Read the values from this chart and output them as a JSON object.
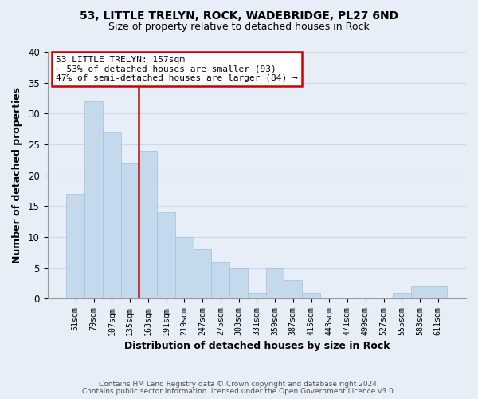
{
  "title1": "53, LITTLE TRELYN, ROCK, WADEBRIDGE, PL27 6ND",
  "title2": "Size of property relative to detached houses in Rock",
  "xlabel": "Distribution of detached houses by size in Rock",
  "ylabel": "Number of detached properties",
  "footer1": "Contains HM Land Registry data © Crown copyright and database right 2024.",
  "footer2": "Contains public sector information licensed under the Open Government Licence v3.0.",
  "bar_labels": [
    "51sqm",
    "79sqm",
    "107sqm",
    "135sqm",
    "163sqm",
    "191sqm",
    "219sqm",
    "247sqm",
    "275sqm",
    "303sqm",
    "331sqm",
    "359sqm",
    "387sqm",
    "415sqm",
    "443sqm",
    "471sqm",
    "499sqm",
    "527sqm",
    "555sqm",
    "583sqm",
    "611sqm"
  ],
  "bar_values": [
    17,
    32,
    27,
    22,
    24,
    14,
    10,
    8,
    6,
    5,
    1,
    5,
    3,
    1,
    0,
    0,
    0,
    0,
    1,
    2,
    2
  ],
  "bar_color": "#c5d9ed",
  "bar_edgecolor": "#a8c4dc",
  "vline_index": 4,
  "vline_color": "#cc0000",
  "annotation_title": "53 LITTLE TRELYN: 157sqm",
  "annotation_line1": "← 53% of detached houses are smaller (93)",
  "annotation_line2": "47% of semi-detached houses are larger (84) →",
  "annotation_box_color": "#cc0000",
  "annotation_bg": "#ffffff",
  "ylim": [
    0,
    40
  ],
  "yticks": [
    0,
    5,
    10,
    15,
    20,
    25,
    30,
    35,
    40
  ],
  "grid_color": "#d0d8e8",
  "bg_color": "#e8eef8"
}
